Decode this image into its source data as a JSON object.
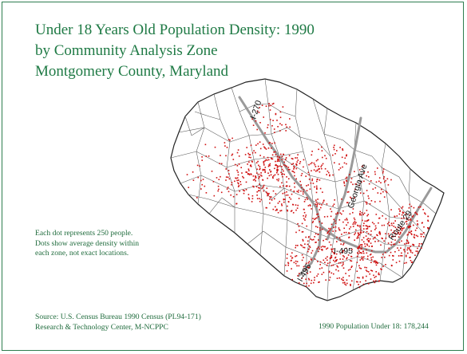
{
  "title": {
    "line1": "Under 18 Years Old Population Density: 1990",
    "line2": "by Community Analysis Zone",
    "line3": "Montgomery County, Maryland"
  },
  "note": {
    "line1": "Each dot represents 250 people.",
    "line2": "Dots show average density within",
    "line3": "each zone, not exact locations."
  },
  "source": {
    "line1": "Source: U.S. Census Bureau 1990 Census (PL94-171)",
    "line2": "Research & Technology Center, M-NCPPC"
  },
  "total_label": "1990 Population Under 18:  178,244",
  "roads": {
    "i270": "I-270",
    "georgia": "Georgia Ave",
    "route29": "Route 29",
    "i495_west": "I-495",
    "i495_east": "I-495"
  },
  "colors": {
    "title": "#1f7a45",
    "frame": "#2e7d4f",
    "dot": "#d01010",
    "road": "#9a9a9a",
    "boundary": "#222222"
  }
}
